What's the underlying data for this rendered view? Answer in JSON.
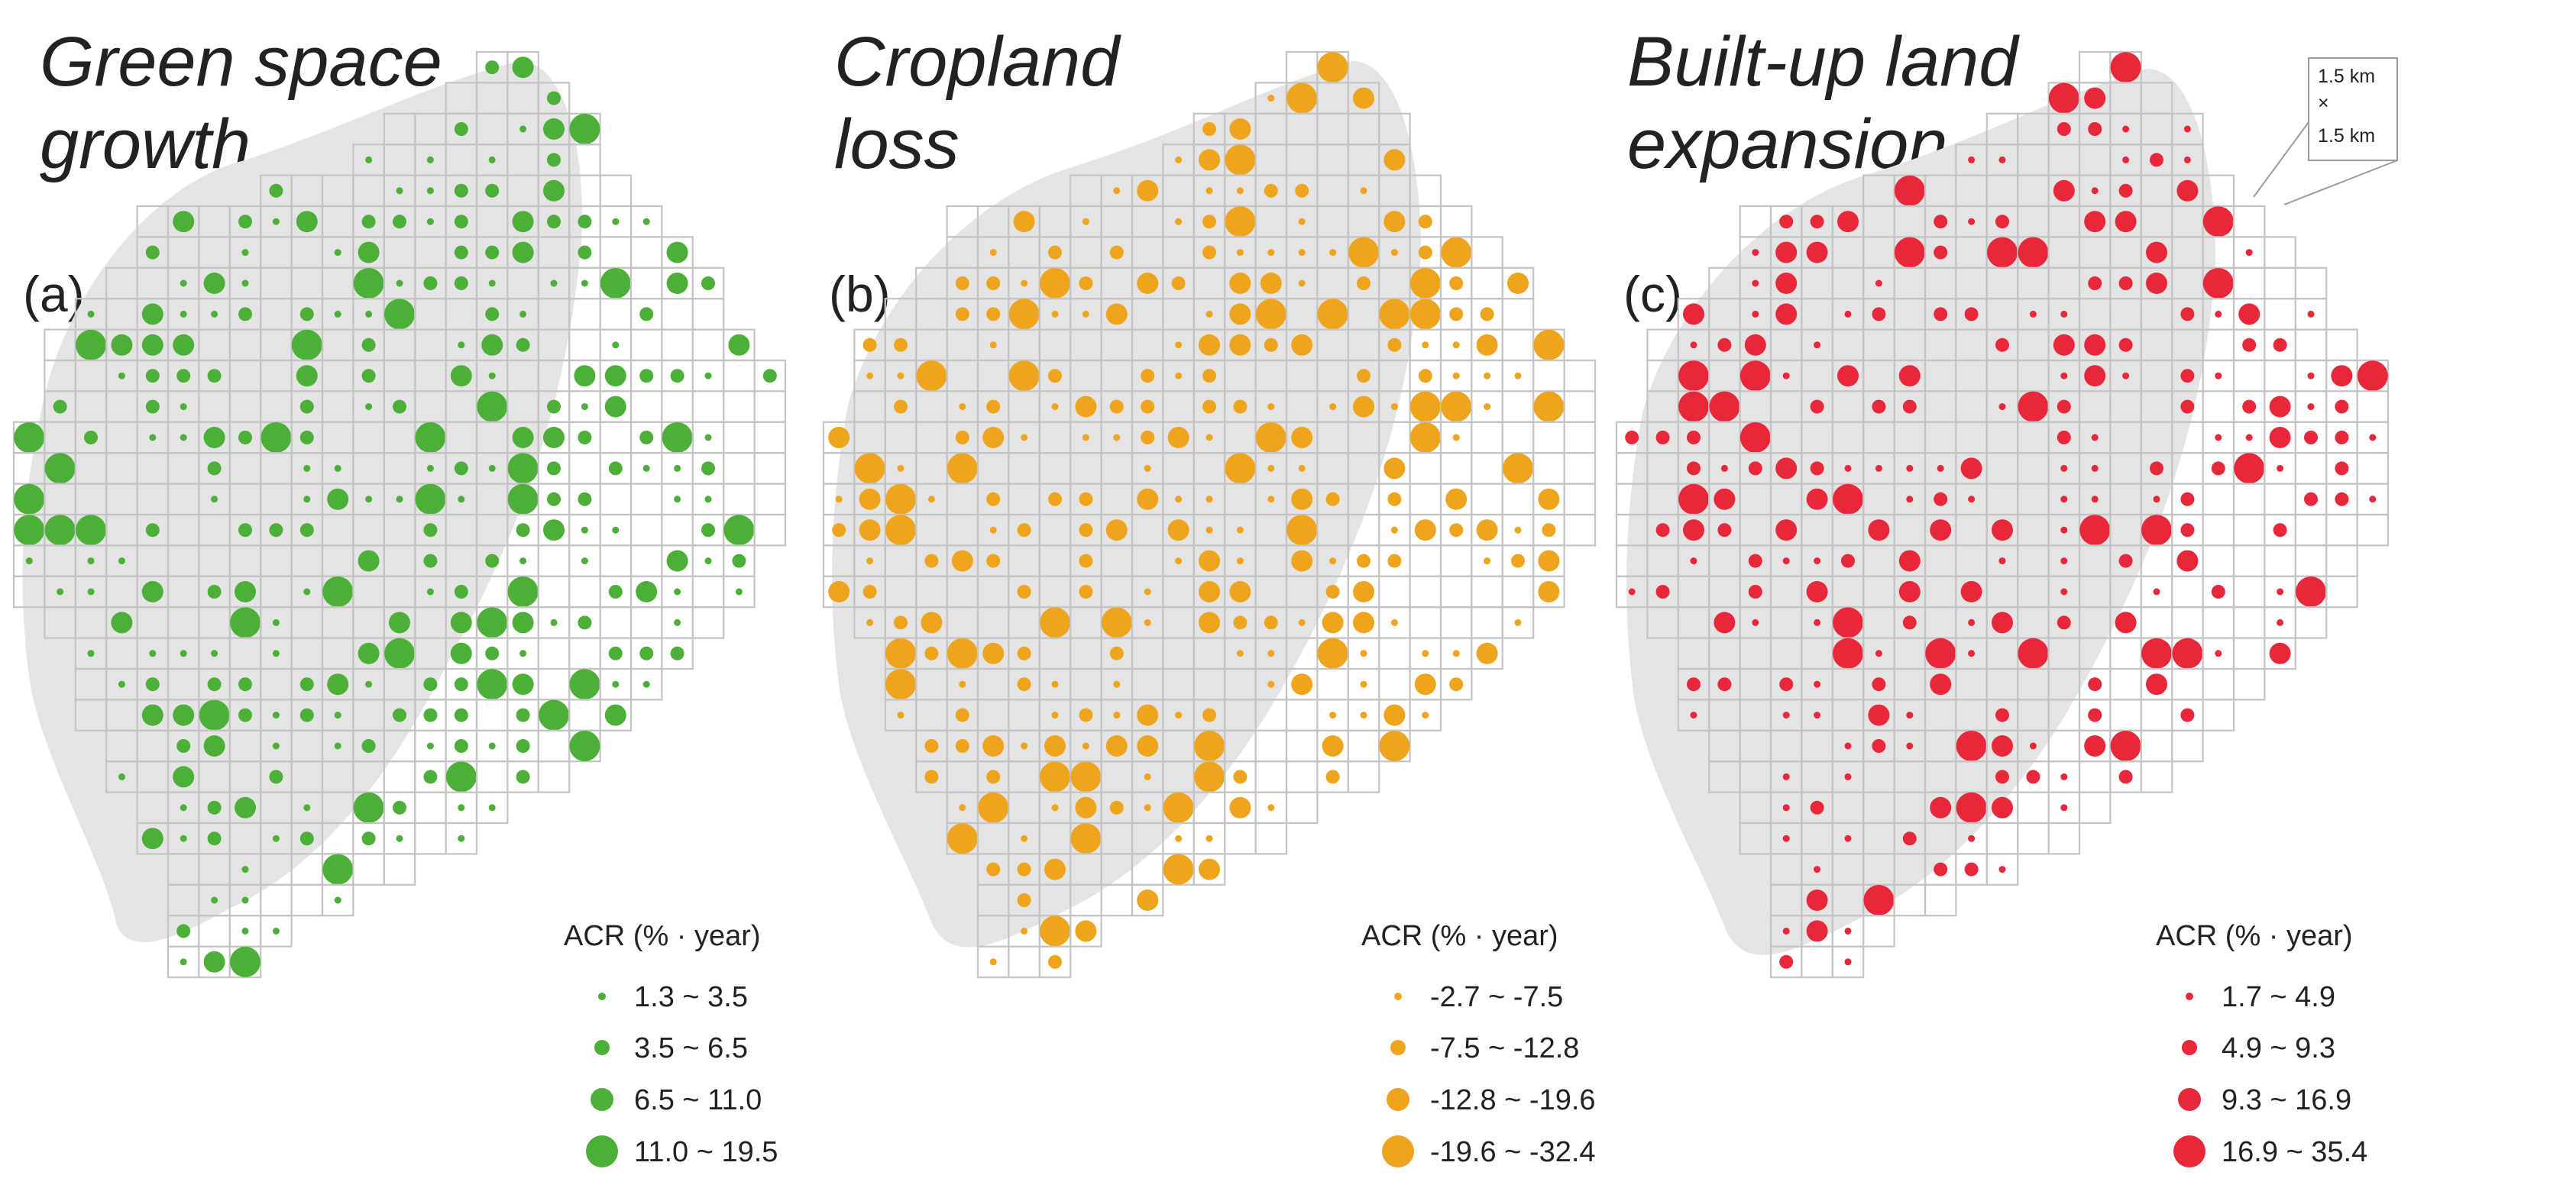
{
  "figure": {
    "scale_box": {
      "line1": "1.5 km",
      "line2": "×",
      "line3": "1.5 km"
    }
  },
  "panels": [
    {
      "id": "a",
      "letter": "(a)",
      "title_line1": "Green space",
      "title_line2": "growth",
      "color": "#4caf37",
      "legend_title": "ACR (% · year)",
      "legend_classes": [
        "1.3 ~ 3.5",
        "3.5 ~ 6.5",
        "6.5 ~ 11.0",
        "11.0 ~ 19.5"
      ]
    },
    {
      "id": "b",
      "letter": "(b)",
      "title_line1": "Cropland",
      "title_line2": "loss",
      "color": "#eea41d",
      "legend_title": "ACR (% · year)",
      "legend_classes": [
        "-2.7 ~ -7.5",
        "-7.5 ~ -12.8",
        "-12.8 ~ -19.6",
        "-19.6 ~ -32.4"
      ]
    },
    {
      "id": "c",
      "letter": "(c)",
      "title_line1": "Built-up land",
      "title_line2": "expansion",
      "color": "#e8283a",
      "legend_title": "ACR (% · year)",
      "legend_classes": [
        "1.7 ~ 4.9",
        "4.9 ~ 9.3",
        "9.3 ~ 16.9",
        "16.9 ~ 35.4"
      ]
    }
  ]
}
